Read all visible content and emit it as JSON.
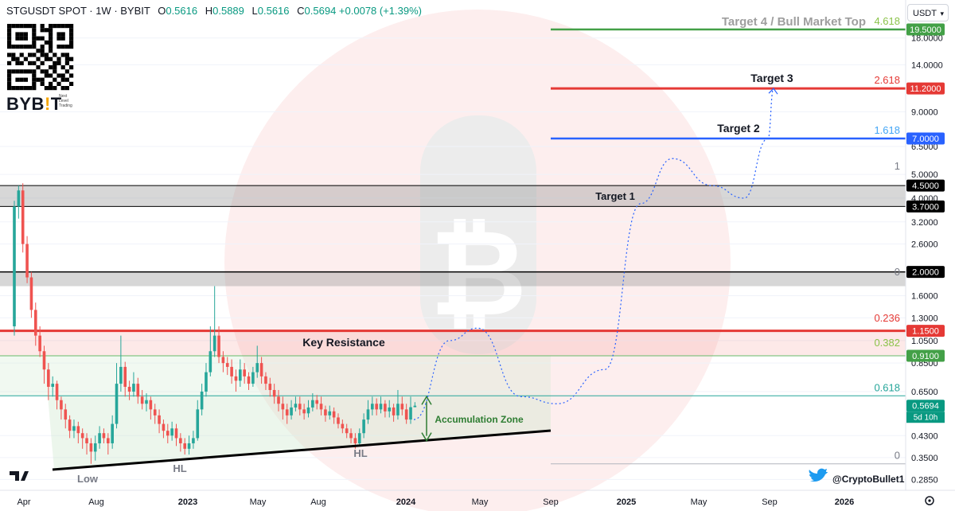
{
  "header": {
    "symbol": "STGUSDT SPOT · 1W · BYBIT",
    "o_label": "O",
    "o_value": "0.5616",
    "h_label": "H",
    "h_value": "0.5889",
    "l_label": "L",
    "l_value": "0.5616",
    "c_label": "C",
    "c_value": "0.5694",
    "change": "+0.0078 (+1.39%)"
  },
  "currency_select": {
    "value": "USDT"
  },
  "brand": {
    "logo_text": "BYB",
    "logo_bar": "!",
    "logo_end": "T",
    "tagline_lines": [
      "Next",
      "Level",
      "Trading"
    ]
  },
  "social": {
    "handle": "@CryptoBullet1"
  },
  "chart_data": {
    "type": "candlestick",
    "y_scale": "log",
    "y_ticks": [
      "18.0000",
      "14.0000",
      "9.0000",
      "6.5000",
      "5.0000",
      "4.0000",
      "3.2000",
      "2.6000",
      "1.6000",
      "1.3000",
      "1.0500",
      "0.8500",
      "0.6500",
      "0.4300",
      "0.3500",
      "0.2850"
    ],
    "x_ticks": [
      "Apr",
      "Aug",
      "2023",
      "May",
      "Aug",
      "2024",
      "May",
      "Sep",
      "2025",
      "May",
      "Sep",
      "2026"
    ],
    "price_tags": [
      {
        "label": "19.5000",
        "value": 19.5,
        "color": "#43a047"
      },
      {
        "label": "11.2000",
        "value": 11.2,
        "color": "#e53935"
      },
      {
        "label": "7.0000",
        "value": 7.0,
        "color": "#2962ff"
      },
      {
        "label": "4.5000",
        "value": 4.5,
        "color": "#000000"
      },
      {
        "label": "3.7000",
        "value": 3.7,
        "color": "#000000"
      },
      {
        "label": "2.0000",
        "value": 2.0,
        "color": "#000000"
      },
      {
        "label": "1.1500",
        "value": 1.15,
        "color": "#e53935"
      },
      {
        "label": "0.9100",
        "value": 0.91,
        "color": "#43a047"
      },
      {
        "label": "0.5694",
        "value": 0.5694,
        "color": "#089981"
      }
    ],
    "countdown": "5d 10h",
    "fib_levels": [
      {
        "label": "4.618",
        "value": 19.5,
        "color": "#8bc34a"
      },
      {
        "label": "2.618",
        "value": 11.2,
        "color": "#e53935"
      },
      {
        "label": "1.618",
        "value": 7.0,
        "color": "#42a5f5"
      },
      {
        "label": "1",
        "value": 5.0,
        "color": "#787b86"
      },
      {
        "label": "0",
        "value": 1.85,
        "color": "#787b86"
      },
      {
        "label": "0.236",
        "value": 1.2,
        "color": "#e53935"
      },
      {
        "label": "0.382",
        "value": 0.95,
        "color": "#8bc34a"
      },
      {
        "label": "0.618",
        "value": 0.625,
        "color": "#26a69a"
      },
      {
        "label": "0",
        "value": 0.33,
        "color": "#787b86"
      }
    ],
    "annotations": [
      {
        "text": "Target 4 / Bull Market Top",
        "color": "#9e9e9e"
      },
      {
        "text": "Target 3",
        "color": "#131722"
      },
      {
        "text": "Target 2",
        "color": "#131722"
      },
      {
        "text": "Target 1",
        "color": "#131722"
      },
      {
        "text": "Key Resistance",
        "color": "#131722"
      },
      {
        "text": "Accumulation Zone",
        "color": "#2e7d32"
      },
      {
        "text": "Low",
        "color": "#787b86"
      },
      {
        "text": "HL",
        "color": "#787b86"
      },
      {
        "text": "HL",
        "color": "#787b86"
      }
    ],
    "zones": [
      {
        "name": "target-1-zone",
        "low": 3.7,
        "high": 4.5
      },
      {
        "name": "zero-zone",
        "low": 1.75,
        "high": 2.0
      },
      {
        "name": "resistance-zone",
        "low": 0.91,
        "high": 1.15
      }
    ],
    "candles": [
      [
        1.2,
        3.7,
        1.1,
        3.9
      ],
      [
        3.7,
        4.3,
        3.3,
        4.5
      ],
      [
        4.3,
        2.6,
        2.4,
        4.6
      ],
      [
        2.6,
        1.9,
        1.8,
        2.8
      ],
      [
        1.9,
        1.4,
        1.3,
        2.0
      ],
      [
        1.4,
        1.1,
        1.0,
        1.5
      ],
      [
        1.1,
        0.95,
        0.9,
        1.2
      ],
      [
        0.95,
        0.8,
        0.7,
        1.0
      ],
      [
        0.8,
        0.68,
        0.6,
        0.85
      ],
      [
        0.68,
        0.7,
        0.62,
        0.75
      ],
      [
        0.7,
        0.6,
        0.55,
        0.72
      ],
      [
        0.6,
        0.55,
        0.5,
        0.62
      ],
      [
        0.55,
        0.5,
        0.46,
        0.58
      ],
      [
        0.5,
        0.45,
        0.42,
        0.52
      ],
      [
        0.45,
        0.47,
        0.42,
        0.5
      ],
      [
        0.47,
        0.44,
        0.4,
        0.49
      ],
      [
        0.44,
        0.42,
        0.38,
        0.46
      ],
      [
        0.42,
        0.4,
        0.36,
        0.44
      ],
      [
        0.4,
        0.37,
        0.33,
        0.42
      ],
      [
        0.37,
        0.4,
        0.34,
        0.43
      ],
      [
        0.4,
        0.44,
        0.38,
        0.47
      ],
      [
        0.44,
        0.42,
        0.4,
        0.46
      ],
      [
        0.42,
        0.4,
        0.36,
        0.44
      ],
      [
        0.4,
        0.48,
        0.38,
        0.52
      ],
      [
        0.48,
        0.7,
        0.46,
        0.85
      ],
      [
        0.7,
        0.82,
        0.65,
        1.1
      ],
      [
        0.82,
        0.68,
        0.62,
        0.86
      ],
      [
        0.68,
        0.65,
        0.6,
        0.72
      ],
      [
        0.65,
        0.7,
        0.62,
        0.78
      ],
      [
        0.7,
        0.62,
        0.58,
        0.74
      ],
      [
        0.62,
        0.58,
        0.55,
        0.66
      ],
      [
        0.58,
        0.6,
        0.54,
        0.64
      ],
      [
        0.6,
        0.55,
        0.5,
        0.62
      ],
      [
        0.55,
        0.52,
        0.48,
        0.58
      ],
      [
        0.52,
        0.48,
        0.44,
        0.55
      ],
      [
        0.48,
        0.45,
        0.42,
        0.5
      ],
      [
        0.45,
        0.43,
        0.4,
        0.48
      ],
      [
        0.43,
        0.46,
        0.41,
        0.49
      ],
      [
        0.46,
        0.42,
        0.39,
        0.48
      ],
      [
        0.42,
        0.4,
        0.37,
        0.44
      ],
      [
        0.4,
        0.38,
        0.36,
        0.42
      ],
      [
        0.38,
        0.4,
        0.36,
        0.43
      ],
      [
        0.4,
        0.42,
        0.38,
        0.45
      ],
      [
        0.42,
        0.55,
        0.41,
        0.6
      ],
      [
        0.55,
        0.65,
        0.52,
        0.7
      ],
      [
        0.65,
        0.78,
        0.62,
        0.85
      ],
      [
        0.78,
        0.95,
        0.75,
        1.2
      ],
      [
        0.95,
        1.1,
        0.9,
        1.75
      ],
      [
        1.1,
        0.9,
        0.85,
        1.2
      ],
      [
        0.9,
        0.85,
        0.78,
        0.95
      ],
      [
        0.85,
        0.82,
        0.76,
        0.9
      ],
      [
        0.82,
        0.75,
        0.7,
        0.88
      ],
      [
        0.75,
        0.72,
        0.65,
        0.8
      ],
      [
        0.72,
        0.8,
        0.68,
        0.88
      ],
      [
        0.8,
        0.75,
        0.7,
        0.85
      ],
      [
        0.75,
        0.7,
        0.66,
        0.78
      ],
      [
        0.7,
        0.78,
        0.68,
        0.82
      ],
      [
        0.78,
        0.85,
        0.74,
        1.0
      ],
      [
        0.85,
        0.75,
        0.7,
        0.9
      ],
      [
        0.75,
        0.7,
        0.66,
        0.78
      ],
      [
        0.7,
        0.66,
        0.62,
        0.74
      ],
      [
        0.66,
        0.62,
        0.58,
        0.7
      ],
      [
        0.62,
        0.58,
        0.54,
        0.66
      ],
      [
        0.58,
        0.55,
        0.5,
        0.62
      ],
      [
        0.55,
        0.52,
        0.48,
        0.58
      ],
      [
        0.52,
        0.56,
        0.5,
        0.6
      ],
      [
        0.56,
        0.58,
        0.54,
        0.62
      ],
      [
        0.58,
        0.55,
        0.52,
        0.62
      ],
      [
        0.55,
        0.53,
        0.5,
        0.58
      ],
      [
        0.53,
        0.56,
        0.51,
        0.6
      ],
      [
        0.56,
        0.6,
        0.54,
        0.64
      ],
      [
        0.6,
        0.58,
        0.55,
        0.63
      ],
      [
        0.58,
        0.55,
        0.52,
        0.62
      ],
      [
        0.55,
        0.52,
        0.49,
        0.57
      ],
      [
        0.52,
        0.54,
        0.5,
        0.57
      ],
      [
        0.54,
        0.51,
        0.48,
        0.56
      ],
      [
        0.51,
        0.48,
        0.46,
        0.53
      ],
      [
        0.48,
        0.46,
        0.44,
        0.5
      ],
      [
        0.46,
        0.44,
        0.42,
        0.48
      ],
      [
        0.44,
        0.42,
        0.4,
        0.46
      ],
      [
        0.42,
        0.4,
        0.38,
        0.44
      ],
      [
        0.4,
        0.44,
        0.39,
        0.46
      ],
      [
        0.44,
        0.5,
        0.42,
        0.53
      ],
      [
        0.5,
        0.55,
        0.48,
        0.6
      ],
      [
        0.55,
        0.58,
        0.52,
        0.62
      ],
      [
        0.58,
        0.55,
        0.52,
        0.61
      ],
      [
        0.55,
        0.58,
        0.53,
        0.62
      ],
      [
        0.58,
        0.54,
        0.51,
        0.6
      ],
      [
        0.54,
        0.56,
        0.51,
        0.6
      ],
      [
        0.56,
        0.52,
        0.49,
        0.58
      ],
      [
        0.52,
        0.58,
        0.5,
        0.66
      ],
      [
        0.58,
        0.55,
        0.52,
        0.62
      ],
      [
        0.55,
        0.5,
        0.48,
        0.58
      ],
      [
        0.5,
        0.5616,
        0.48,
        0.62
      ],
      [
        0.5616,
        0.5694,
        0.5616,
        0.5889
      ]
    ],
    "projection": [
      [
        0.5,
        "Feb 2024"
      ],
      [
        1.05,
        "Apr 2024"
      ],
      [
        0.62,
        "Jul 2024"
      ],
      [
        0.58,
        "Sep 2024"
      ],
      [
        0.9,
        "Nov 2024"
      ],
      [
        3.8,
        "Jan 2025"
      ],
      [
        5.8,
        "Mar 2025"
      ],
      [
        4.0,
        "Jun 2025"
      ],
      [
        5.5,
        "Aug 2025"
      ],
      [
        11.2,
        "Sep 2025"
      ]
    ]
  }
}
